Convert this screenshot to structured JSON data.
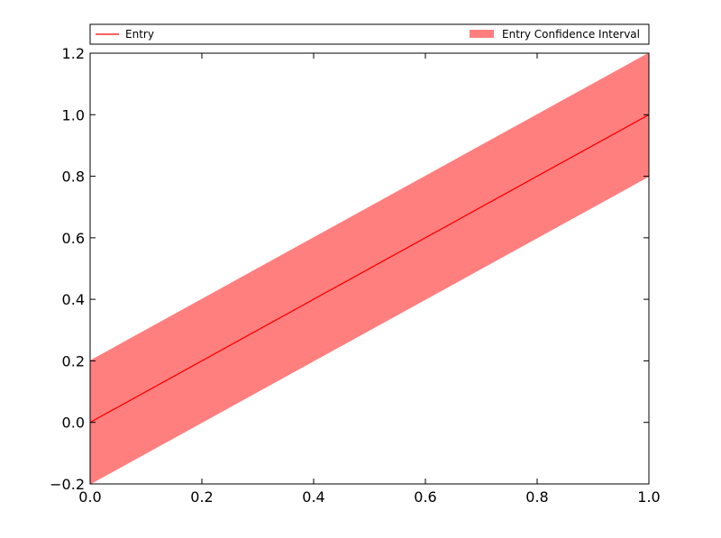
{
  "chart_data": {
    "type": "area",
    "title": "",
    "xlabel": "",
    "ylabel": "",
    "xlim": [
      0.0,
      1.0
    ],
    "ylim": [
      -0.2,
      1.2
    ],
    "grid": false,
    "legend_placement": "top (above plot, spanning full width)",
    "x_ticks": [
      "0.0",
      "0.2",
      "0.4",
      "0.6",
      "0.8",
      "1.0"
    ],
    "y_ticks": [
      "−0.2",
      "0.0",
      "0.2",
      "0.4",
      "0.6",
      "0.8",
      "1.0",
      "1.2"
    ],
    "series": [
      {
        "name": "Entry",
        "kind": "line",
        "color": "#ff0000",
        "x": [
          0.0,
          1.0
        ],
        "y": [
          0.0,
          1.0
        ]
      },
      {
        "name": "Entry Confidence Interval",
        "kind": "band",
        "color": "#ff7f7f",
        "x": [
          0.0,
          1.0
        ],
        "lower": [
          -0.2,
          0.8
        ],
        "upper": [
          0.2,
          1.2
        ]
      }
    ]
  }
}
